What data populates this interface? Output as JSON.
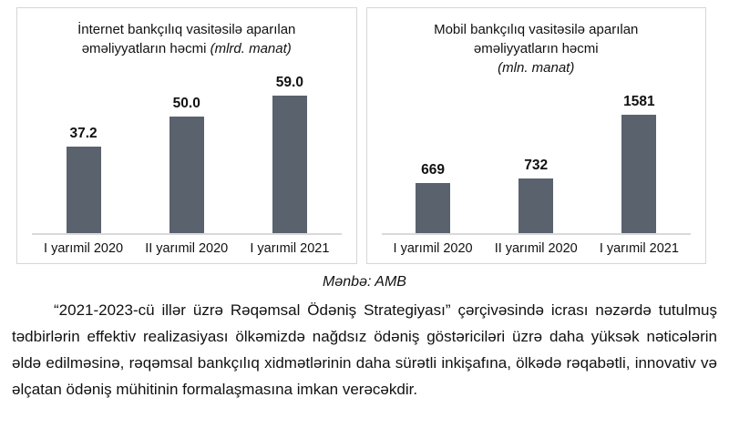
{
  "chart_data": [
    {
      "type": "bar",
      "title": "İnternet bankçılıq vasitəsilə aparılan əməliyyatların həcmi (mlrd. manat)",
      "title_main": "İnternet bankçılıq vasitəsilə aparılan əməliyyatların həcmi",
      "title_unit": "(mlrd. manat)",
      "categories": [
        "I yarımil 2020",
        "II yarımil 2020",
        "I yarımil 2021"
      ],
      "values": [
        37.2,
        50.0,
        59.0
      ],
      "value_labels": [
        "37.2",
        "50.0",
        "59.0"
      ],
      "unit": "mlrd. manat",
      "bar_color": "#5a626e",
      "ylim": [
        0,
        72
      ],
      "grid": false,
      "legend_position": "none"
    },
    {
      "type": "bar",
      "title": "Mobil bankçılıq vasitəsilə aparılan əməliyyatların həcmi (mln. manat)",
      "title_main": "Mobil bankçılıq vasitəsilə aparılan əməliyyatların həcmi",
      "title_unit": "(mln. manat)",
      "categories": [
        "I yarımil 2020",
        "II yarımil 2020",
        "I yarımil 2021"
      ],
      "values": [
        669,
        732,
        1581
      ],
      "value_labels": [
        "669",
        "732",
        "1581"
      ],
      "unit": "mln. manat",
      "bar_color": "#5a626e",
      "ylim": [
        0,
        2050
      ],
      "grid": false,
      "legend_position": "none"
    }
  ],
  "source_caption": "Mənbə: AMB",
  "paragraph": "“2021-2023-cü illər üzrə Rəqəmsal Ödəniş Strategiyası” çərçivəsində icrası nəzərdə tutulmuş tədbirlərin effektiv realizasiyası ölkəmizdə nağdsız ödəniş göstəriciləri üzrə daha yüksək nəticələrin əldə edilməsinə, rəqəmsal bankçılıq xidmətlərinin daha sürətli inkişafına, ölkədə rəqabətli, innovativ və əlçatan ödəniş mühitinin formalaşmasına imkan verəcəkdir.",
  "colors": {
    "bar": "#5a626e",
    "axis_line": "#d9d9d9",
    "panel_border": "#d6d6d6"
  }
}
